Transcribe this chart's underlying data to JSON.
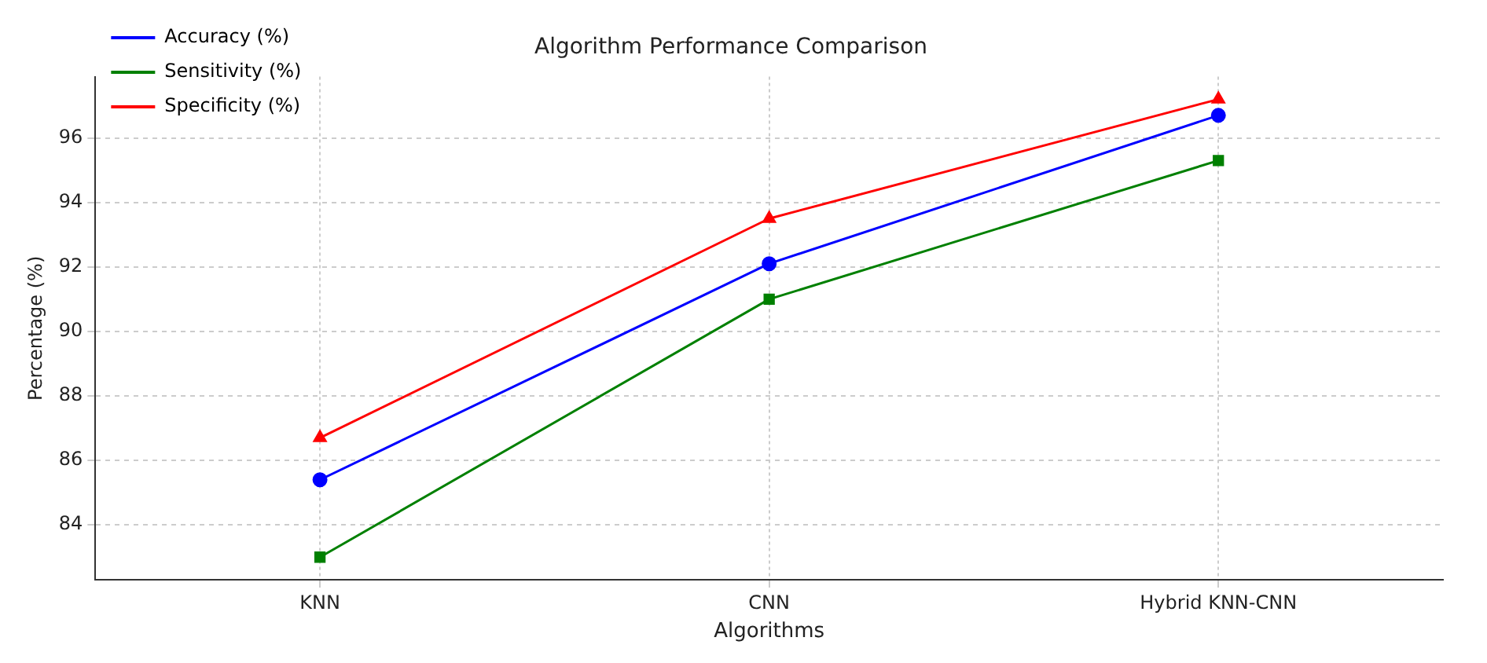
{
  "chart_data": {
    "type": "line",
    "title": "Algorithm Performance Comparison",
    "xlabel": "Algorithms",
    "ylabel": "Percentage (%)",
    "categories": [
      "KNN",
      "CNN",
      "Hybrid KNN-CNN"
    ],
    "series": [
      {
        "name": "Accuracy (%)",
        "color": "#0000ff",
        "values": [
          85.4,
          92.1,
          96.7
        ],
        "marker": "circle"
      },
      {
        "name": "Sensitivity (%)",
        "color": "#008000",
        "values": [
          83.0,
          91.0,
          95.3
        ],
        "marker": "square"
      },
      {
        "name": "Specificity (%)",
        "color": "#ff0000",
        "values": [
          86.7,
          93.5,
          97.2
        ],
        "marker": "triangle"
      }
    ],
    "ylim": [
      82.3,
      97.9
    ],
    "yticks": [
      84,
      86,
      88,
      90,
      92,
      94,
      96
    ],
    "grid": true,
    "legend": "top left",
    "line_style": "solid"
  }
}
